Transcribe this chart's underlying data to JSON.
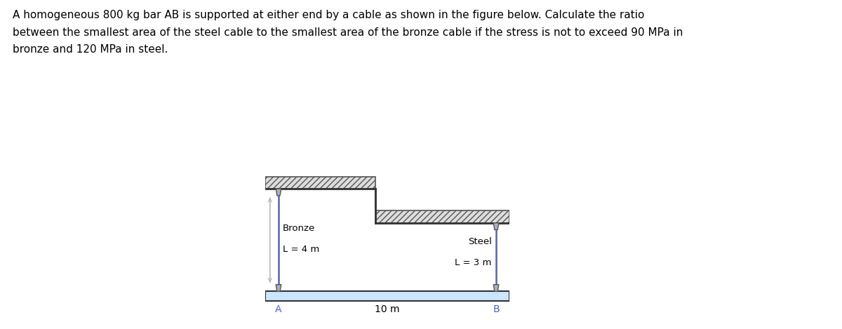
{
  "title_text": "A homogeneous 800 kg bar AB is supported at either end by a cable as shown in the figure below. Calculate the ratio\nbetween the smallest area of the steel cable to the smallest area of the bronze cable if the stress is not to exceed 90 MPa in\nbronze and 120 MPa in steel.",
  "title_fontsize": 11,
  "title_color": "#000000",
  "bg_color": "#ffffff",
  "bar_color": "#cce5ff",
  "bar_edge_color": "#333333",
  "cable_color": "#5566aa",
  "hatch_fill": "#dddddd",
  "hatch_edge": "#555555",
  "label_blue": "#4466cc",
  "text_color": "#000000",
  "bronze_label_line1": "Bronze",
  "bronze_label_line2": "L = 4 m",
  "steel_label_line1": "Steel",
  "steel_label_line2": "L = 3 m",
  "bottom_label": "10 m",
  "point_a": "A",
  "point_b": "B"
}
